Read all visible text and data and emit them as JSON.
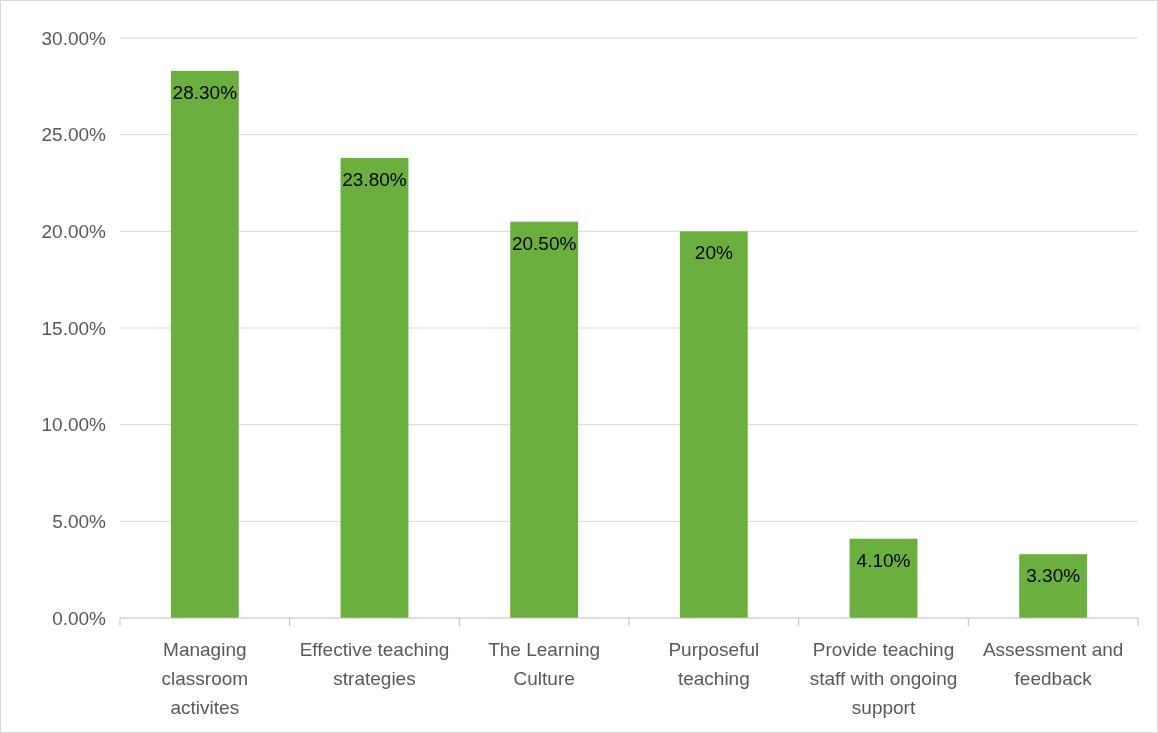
{
  "chart_data": {
    "type": "bar",
    "categories": [
      "Managing classroom activites",
      "Effective teaching strategies",
      "The Learning Culture",
      "Purposeful teaching",
      "Provide teaching staff with ongoing support",
      "Assessment and feedback"
    ],
    "values": [
      28.3,
      23.8,
      20.5,
      20,
      4.1,
      3.3
    ],
    "value_labels": [
      "28.30%",
      "23.80%",
      "20.50%",
      "20%",
      "4.10%",
      "3.30%"
    ],
    "color": "#6bb03f",
    "ylim": [
      0,
      30
    ],
    "yticks": [
      {
        "value": 0,
        "label": "0.00%"
      },
      {
        "value": 5,
        "label": "5.00%"
      },
      {
        "value": 10,
        "label": "10.00%"
      },
      {
        "value": 15,
        "label": "15.00%"
      },
      {
        "value": 20,
        "label": "20.00%"
      },
      {
        "value": 25,
        "label": "25.00%"
      },
      {
        "value": 30,
        "label": "30.00%"
      }
    ],
    "grid": "y"
  }
}
